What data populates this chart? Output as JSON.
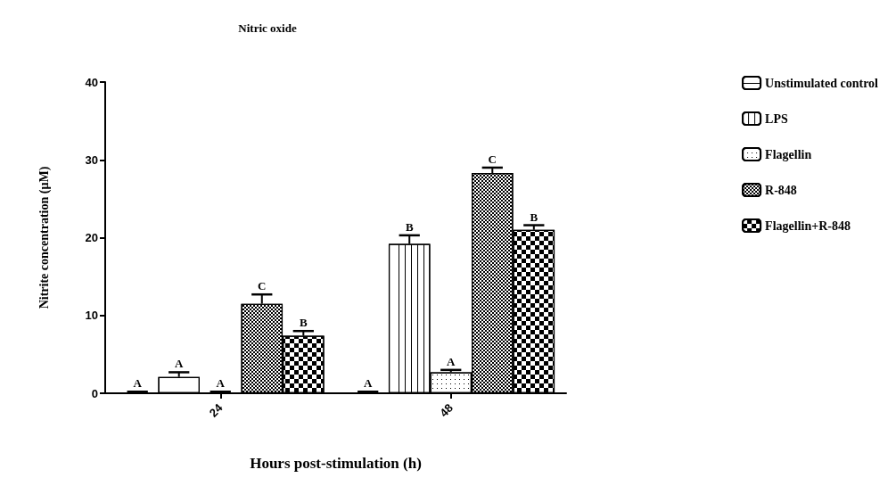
{
  "chart_data": {
    "type": "bar",
    "title": "Nitric oxide",
    "xlabel": "Hours post-stimulation (h)",
    "ylabel": "Nitrite concentration (µM)",
    "categories": [
      "24",
      "48"
    ],
    "ylim": [
      0,
      40
    ],
    "yticks": [
      0,
      10,
      20,
      30,
      40
    ],
    "grid": false,
    "legend": "top right",
    "series": [
      {
        "name": "Unstimulated control",
        "color": "#ffffff",
        "colors": [
          "#000000",
          "#000000"
        ],
        "values": [
          0.1,
          0.1
        ],
        "errors": [
          0.1,
          0.1
        ],
        "value_labels": [
          "A",
          "A"
        ]
      },
      {
        "name": "LPS",
        "color": "#ffffff",
        "values": [
          2.1,
          19.2
        ],
        "errors": [
          0.6,
          1.1
        ],
        "value_labels": [
          "A",
          "B"
        ]
      },
      {
        "name": "Flagellin",
        "color": "#ffffff",
        "colors": [
          "#000000",
          "#ffffff"
        ],
        "values": [
          0.1,
          2.7
        ],
        "errors": [
          0.1,
          0.3
        ],
        "value_labels": [
          "A",
          "A"
        ]
      },
      {
        "name": "R-848",
        "color": "#ffffff",
        "values": [
          11.5,
          28.3
        ],
        "errors": [
          1.2,
          0.7
        ],
        "value_labels": [
          "C",
          "C"
        ]
      },
      {
        "name": "Flagellin+R-848",
        "color": "#ffffff",
        "values": [
          7.4,
          21.0
        ],
        "errors": [
          0.6,
          0.6
        ],
        "value_labels": [
          "B",
          "B"
        ]
      }
    ]
  }
}
